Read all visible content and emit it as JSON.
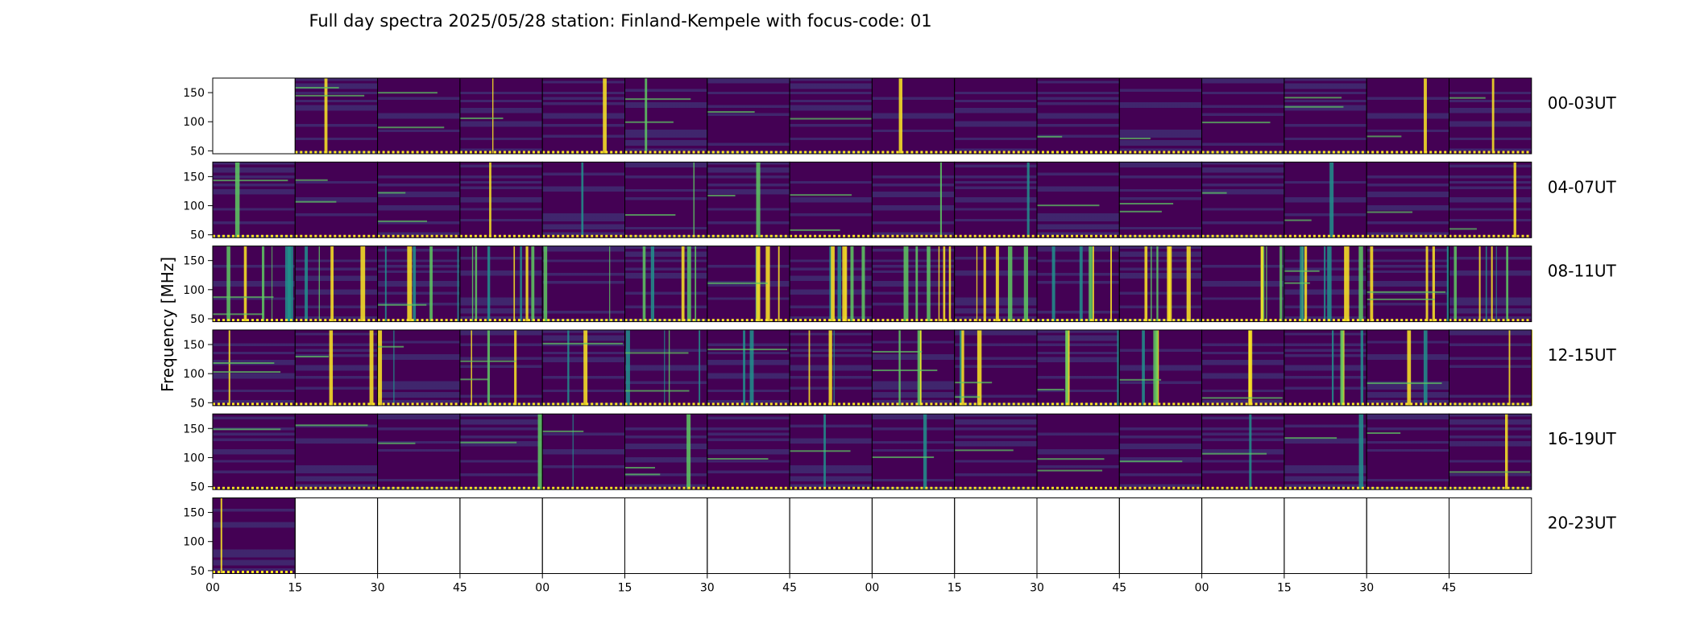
{
  "chart_data": {
    "type": "heatmap",
    "title": "Full day spectra 2025/05/28 station: Finland-Kempele with focus-code: 01",
    "ylabel": "Frequency [MHz]",
    "xlabel": "",
    "y_ticks": [
      "150",
      "100",
      "50"
    ],
    "y_tick_values": [
      150,
      100,
      50
    ],
    "ylim": [
      45,
      175
    ],
    "x_ticks": [
      "00",
      "15",
      "30",
      "45",
      "00",
      "15",
      "30",
      "45",
      "00",
      "15",
      "30",
      "45",
      "00",
      "15",
      "30",
      "45"
    ],
    "rows": [
      {
        "label": "00-03UT",
        "panels": 16,
        "empty": [
          0
        ]
      },
      {
        "label": "04-07UT",
        "panels": 16,
        "empty": []
      },
      {
        "label": "08-11UT",
        "panels": 16,
        "empty": []
      },
      {
        "label": "12-15UT",
        "panels": 16,
        "empty": []
      },
      {
        "label": "16-19UT",
        "panels": 16,
        "empty": []
      },
      {
        "label": "20-23UT",
        "panels": 16,
        "empty": [
          1,
          2,
          3,
          4,
          5,
          6,
          7,
          8,
          9,
          10,
          11,
          12,
          13,
          14,
          15
        ]
      }
    ],
    "panel_minutes": 15,
    "colormap": [
      "#440154",
      "#3b528b",
      "#21918c",
      "#5ec962",
      "#fde725"
    ],
    "grid": false
  }
}
